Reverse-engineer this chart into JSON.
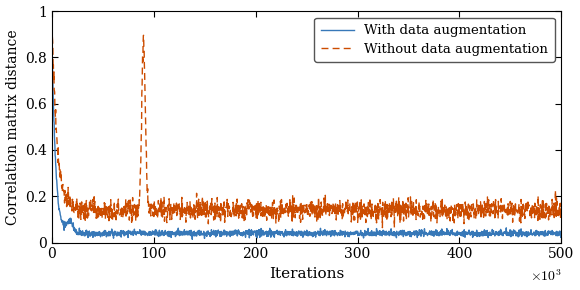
{
  "n_points": 2000,
  "x_max": 500,
  "ylim": [
    0,
    1.0
  ],
  "xlim": [
    0,
    500
  ],
  "xlabel": "Iterations",
  "ylabel": "Correlation matrix distance",
  "xtick_labels": [
    "0",
    "100",
    "200",
    "300",
    "400",
    "500"
  ],
  "xtick_vals": [
    0,
    100,
    200,
    300,
    400,
    500
  ],
  "ytick_labels": [
    "0",
    "0.2",
    "0.4",
    "0.6",
    "0.8",
    "1"
  ],
  "ytick_vals": [
    0,
    0.2,
    0.4,
    0.6,
    0.8,
    1.0
  ],
  "legend_labels": [
    "With data augmentation",
    "Without data augmentation"
  ],
  "color_with": "#3778b8",
  "color_without": "#cc4c00",
  "seed_with": 12,
  "seed_without": 77,
  "figsize": [
    5.8,
    2.9
  ],
  "dpi": 100,
  "linewidth": 1.0
}
